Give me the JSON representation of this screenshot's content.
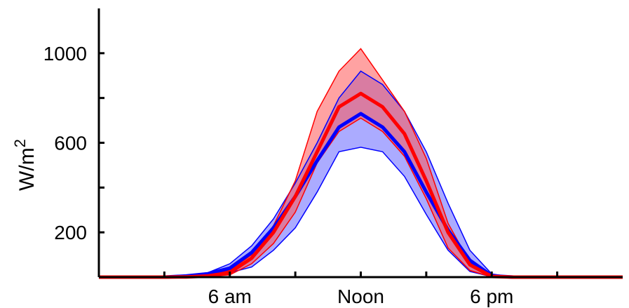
{
  "chart_data": {
    "type": "area",
    "title": "",
    "xlabel": "",
    "ylabel": "W/m",
    "ylabel_superscript": "2",
    "xlim": [
      0,
      24
    ],
    "ylim": [
      0,
      1200
    ],
    "x_ticks": [
      3,
      6,
      9,
      12,
      15,
      18,
      21
    ],
    "x_tick_labels": [
      {
        "x": 6,
        "label": "6 am"
      },
      {
        "x": 12,
        "label": "Noon"
      },
      {
        "x": 18,
        "label": "6 pm"
      }
    ],
    "y_ticks": [
      200,
      400,
      600,
      800,
      1000
    ],
    "y_tick_labels": [
      {
        "y": 200,
        "label": "200"
      },
      {
        "y": 600,
        "label": "600"
      },
      {
        "y": 1000,
        "label": "1000"
      }
    ],
    "grid": false,
    "x": [
      0,
      1,
      2,
      3,
      4,
      5,
      6,
      7,
      8,
      9,
      10,
      11,
      12,
      13,
      14,
      15,
      16,
      17,
      18,
      19,
      20,
      21,
      22,
      23,
      24
    ],
    "series": [
      {
        "color": "#0000ff",
        "band_color": "#6666ff",
        "mean": [
          0,
          0,
          0,
          0,
          5,
          15,
          40,
          110,
          220,
          360,
          520,
          670,
          730,
          670,
          560,
          380,
          210,
          75,
          6,
          0,
          0,
          0,
          0,
          0,
          0
        ],
        "upper": [
          0,
          0,
          0,
          0,
          8,
          20,
          60,
          140,
          260,
          420,
          600,
          800,
          920,
          860,
          740,
          560,
          330,
          120,
          14,
          0,
          0,
          0,
          0,
          0,
          0
        ],
        "lower": [
          0,
          0,
          0,
          0,
          2,
          8,
          20,
          45,
          120,
          220,
          380,
          560,
          580,
          560,
          450,
          280,
          120,
          25,
          2,
          0,
          0,
          0,
          0,
          0,
          0
        ]
      },
      {
        "color": "#ff0000",
        "band_color": "#ff5555",
        "mean": [
          0,
          0,
          0,
          0,
          1,
          5,
          20,
          85,
          200,
          360,
          560,
          760,
          820,
          760,
          640,
          430,
          200,
          55,
          3,
          0,
          0,
          0,
          0,
          0,
          0
        ],
        "upper": [
          0,
          0,
          0,
          0,
          2,
          8,
          30,
          100,
          230,
          430,
          740,
          920,
          1020,
          880,
          740,
          530,
          240,
          65,
          5,
          0,
          0,
          0,
          0,
          0,
          0
        ],
        "lower": [
          0,
          0,
          0,
          0,
          1,
          3,
          10,
          60,
          150,
          290,
          510,
          650,
          710,
          650,
          540,
          350,
          130,
          30,
          1,
          0,
          0,
          0,
          0,
          0,
          0
        ]
      }
    ]
  }
}
